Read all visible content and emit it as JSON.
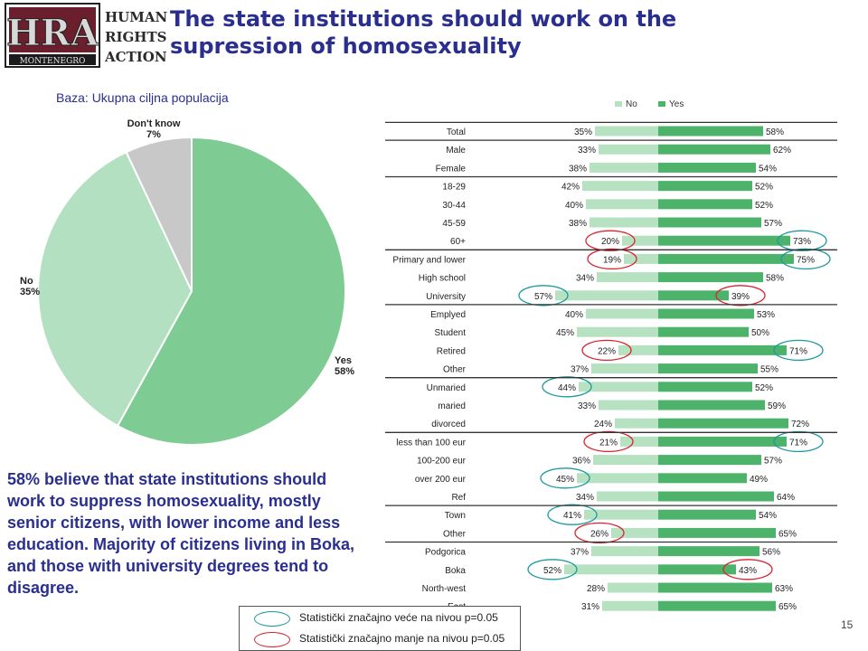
{
  "logo": {
    "letters": "HRA",
    "org_line1": "HUMAN",
    "org_line2": "RIGHTS",
    "org_line3": "ACTION",
    "country": "MONTENEGRO"
  },
  "title": "The state institutions should work on the supression of homosexuality",
  "base_note": "Baza: Ukupna ciljna populacija",
  "summary": "58% believe that state institutions should work to suppress homosexuality, mostly senior citizens, with lower income and less education. Majority of citizens living in Boka, and those with university degrees tend to disagree.",
  "significance_legend": {
    "higher": "Statistički značajno veće na nivou p=0.05",
    "lower": "Statistički značajno manje na nivou p=0.05"
  },
  "page_number": "15",
  "colors": {
    "yes": "#7ecb93",
    "no": "#b2e0c0",
    "dont_know": "#c8c8c8",
    "bar_yes": "#4db36a",
    "bar_no": "#b6e2c2",
    "title": "#2a2f8f",
    "high_oval": "#1a9a9e",
    "low_oval": "#d9232e"
  },
  "chart_data": [
    {
      "type": "pie",
      "slices": [
        {
          "label": "Yes",
          "value": 58,
          "display": "58%"
        },
        {
          "label": "No",
          "value": 35,
          "display": "35%"
        },
        {
          "label": "Don't know",
          "value": 7,
          "display": "7%"
        }
      ]
    },
    {
      "type": "bar",
      "orientation": "diverging-horizontal",
      "legend": [
        "No",
        "Yes"
      ],
      "legend_position": "top",
      "categories": [
        "Total",
        "Male",
        "Female",
        "18-29",
        "30-44",
        "45-59",
        "60+",
        "Primary and lower",
        "High school",
        "University",
        "Emplyed",
        "Student",
        "Retired",
        "Other",
        "Unmaried",
        "maried",
        "divorced",
        "less than 100 eur",
        "100-200 eur",
        "over 200 eur",
        "Ref",
        "Town",
        "Other",
        "Podgorica",
        "Boka",
        "North-west",
        "East"
      ],
      "series": [
        {
          "name": "No",
          "values": [
            35,
            33,
            38,
            42,
            40,
            38,
            20,
            19,
            34,
            57,
            40,
            45,
            22,
            37,
            44,
            33,
            24,
            21,
            36,
            45,
            34,
            41,
            26,
            37,
            52,
            28,
            31
          ]
        },
        {
          "name": "Yes",
          "values": [
            58,
            62,
            54,
            52,
            52,
            57,
            73,
            75,
            58,
            39,
            53,
            50,
            71,
            55,
            52,
            59,
            72,
            71,
            57,
            49,
            64,
            54,
            65,
            56,
            43,
            63,
            65
          ]
        }
      ],
      "significance": {
        "higher": [
          {
            "row": 6,
            "series": "Yes"
          },
          {
            "row": 7,
            "series": "Yes"
          },
          {
            "row": 9,
            "series": "No"
          },
          {
            "row": 12,
            "series": "Yes"
          },
          {
            "row": 14,
            "series": "No"
          },
          {
            "row": 17,
            "series": "Yes"
          },
          {
            "row": 19,
            "series": "No"
          },
          {
            "row": 21,
            "series": "No"
          },
          {
            "row": 24,
            "series": "No"
          }
        ],
        "lower": [
          {
            "row": 6,
            "series": "No"
          },
          {
            "row": 7,
            "series": "No"
          },
          {
            "row": 9,
            "series": "Yes"
          },
          {
            "row": 12,
            "series": "No"
          },
          {
            "row": 17,
            "series": "No"
          },
          {
            "row": 22,
            "series": "No"
          },
          {
            "row": 24,
            "series": "Yes"
          }
        ]
      },
      "group_breaks_after": [
        0,
        2,
        6,
        9,
        13,
        16,
        20,
        22
      ]
    }
  ]
}
